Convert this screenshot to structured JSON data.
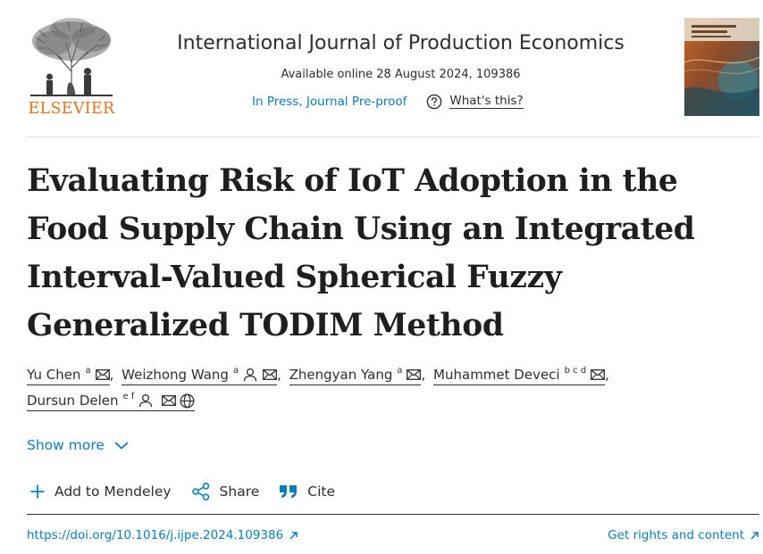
{
  "header": {
    "publisher": "ELSEVIER",
    "journal_title": "International Journal of Production Economics",
    "available": "Available online 28 August 2024, 109386",
    "status": "In Press, Journal Pre-proof",
    "help_label": "What's this?",
    "cover_icon": "journal-cover"
  },
  "article": {
    "title": "Evaluating Risk of IoT Adoption in the Food Supply Chain Using an Integrated Interval-Valued Spherical Fuzzy Generalized TODIM Method",
    "authors": [
      {
        "name": "Yu Chen",
        "affil": "a",
        "icons": [
          "email-icon"
        ]
      },
      {
        "name": "Weizhong Wang",
        "affil": "a",
        "icons": [
          "person-icon",
          "email-icon"
        ]
      },
      {
        "name": "Zhengyan Yang",
        "affil": "a",
        "icons": [
          "email-icon"
        ]
      },
      {
        "name": "Muhammet Deveci",
        "affil": "b c d",
        "icons": [
          "email-icon"
        ]
      },
      {
        "name": "Dursun Delen",
        "affil": "e f",
        "icons": [
          "person-icon",
          "email-icon",
          "globe-icon"
        ]
      }
    ],
    "separator": ","
  },
  "links": {
    "show_more": "Show more",
    "add_mendeley": "Add to Mendeley",
    "share": "Share",
    "cite": "Cite",
    "doi": "https://doi.org/10.1016/j.ijpe.2024.109386",
    "rights": "Get rights and content"
  },
  "colors": {
    "link": "#0c7dbb",
    "elsevier_orange": "#e9711c",
    "text": "#2e2e2e"
  }
}
